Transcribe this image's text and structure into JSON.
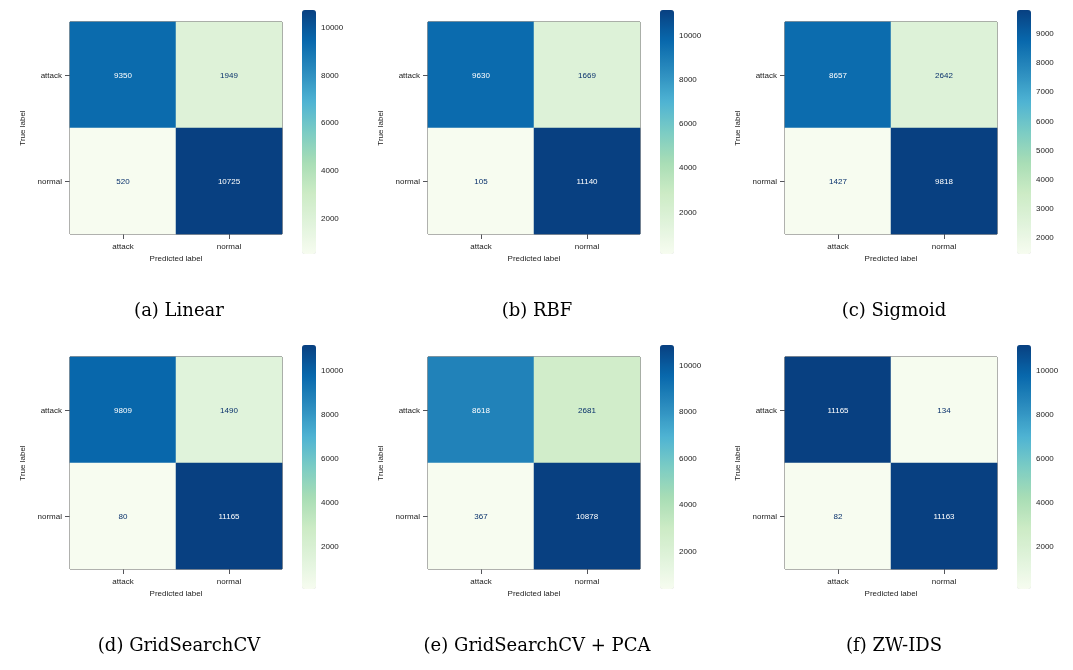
{
  "chart_data": [
    {
      "type": "heatmap",
      "title": "(a) Linear",
      "xlabel": "Predicted label",
      "ylabel": "True label",
      "categories": [
        "attack",
        "normal"
      ],
      "y_categories": [
        "attack",
        "normal"
      ],
      "cells": [
        [
          9350,
          1949
        ],
        [
          520,
          10725
        ]
      ],
      "clim": [
        520,
        10725
      ],
      "cticks": [
        2000,
        4000,
        6000,
        8000,
        10000
      ],
      "data_labels": true
    },
    {
      "type": "heatmap",
      "title": "(b) RBF",
      "xlabel": "Predicted label",
      "ylabel": "True label",
      "categories": [
        "attack",
        "normal"
      ],
      "y_categories": [
        "attack",
        "normal"
      ],
      "cells": [
        [
          9630,
          1669
        ],
        [
          105,
          11140
        ]
      ],
      "clim": [
        105,
        11140
      ],
      "cticks": [
        2000,
        4000,
        6000,
        8000,
        10000
      ],
      "data_labels": true
    },
    {
      "type": "heatmap",
      "title": "(c) Sigmoid",
      "xlabel": "Predicted label",
      "ylabel": "True label",
      "categories": [
        "attack",
        "normal"
      ],
      "y_categories": [
        "attack",
        "normal"
      ],
      "cells": [
        [
          8657,
          2642
        ],
        [
          1427,
          9818
        ]
      ],
      "clim": [
        1427,
        9818
      ],
      "cticks": [
        2000,
        3000,
        4000,
        5000,
        6000,
        7000,
        8000,
        9000
      ],
      "data_labels": true
    },
    {
      "type": "heatmap",
      "title": "(d) GridSearchCV",
      "xlabel": "Predicted label",
      "ylabel": "True label",
      "categories": [
        "attack",
        "normal"
      ],
      "y_categories": [
        "attack",
        "normal"
      ],
      "cells": [
        [
          9809,
          1490
        ],
        [
          80,
          11165
        ]
      ],
      "clim": [
        80,
        11165
      ],
      "cticks": [
        2000,
        4000,
        6000,
        8000,
        10000
      ],
      "data_labels": true
    },
    {
      "type": "heatmap",
      "title": "(e) GridSearchCV + PCA",
      "xlabel": "Predicted label",
      "ylabel": "True label",
      "categories": [
        "attack",
        "normal"
      ],
      "y_categories": [
        "attack",
        "normal"
      ],
      "cells": [
        [
          8618,
          2681
        ],
        [
          367,
          10878
        ]
      ],
      "clim": [
        367,
        10878
      ],
      "cticks": [
        2000,
        4000,
        6000,
        8000,
        10000
      ],
      "data_labels": true
    },
    {
      "type": "heatmap",
      "title": "(f) ZW-IDS",
      "xlabel": "Predicted label",
      "ylabel": "True label",
      "categories": [
        "attack",
        "normal"
      ],
      "y_categories": [
        "attack",
        "normal"
      ],
      "cells": [
        [
          11165,
          134
        ],
        [
          82,
          11163
        ]
      ],
      "clim": [
        82,
        11163
      ],
      "cticks": [
        2000,
        4000,
        6000,
        8000,
        10000
      ],
      "data_labels": true
    }
  ]
}
